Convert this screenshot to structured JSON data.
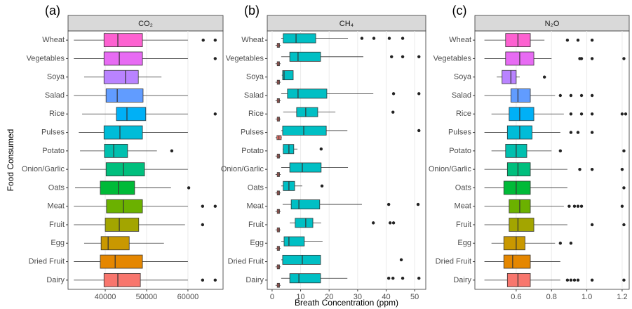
{
  "chart_data": [
    {
      "type": "boxplot",
      "label": "(a)",
      "title": "CO₂",
      "y_label": "Food Consumed",
      "categories": [
        "Wheat",
        "Vegetables",
        "Soya",
        "Salad",
        "Rice",
        "Pulses",
        "Potato",
        "Onion/Garlic",
        "Oats",
        "Meat",
        "Fruit",
        "Egg",
        "Dried Fruit",
        "Dairy"
      ],
      "xlim": [
        31000,
        68500
      ],
      "xticks": [
        40000,
        50000,
        60000
      ],
      "grid": true,
      "series": [
        {
          "colors": [
            "#FD61D1",
            "#E76BF3",
            "#B983FF",
            "#619CFF",
            "#00B0F6",
            "#00BCD8",
            "#00C0AF",
            "#00BF7D",
            "#00BA38",
            "#6BB100",
            "#A3A500",
            "#C99800",
            "#E58700",
            "#F8766D"
          ],
          "whislo": [
            32400,
            32400,
            34900,
            32400,
            34400,
            33600,
            33900,
            33900,
            32700,
            32400,
            32400,
            34900,
            32400,
            32400
          ],
          "q1": [
            39700,
            39700,
            39700,
            40200,
            42700,
            39700,
            39800,
            40200,
            38800,
            40300,
            40000,
            39000,
            38800,
            39700
          ],
          "med": [
            43050,
            43400,
            44900,
            42900,
            45250,
            43550,
            42050,
            44400,
            43200,
            44400,
            43400,
            40700,
            42400,
            43050
          ],
          "q3": [
            49000,
            49000,
            48000,
            49150,
            49800,
            49000,
            45400,
            49500,
            47100,
            49000,
            48100,
            45800,
            49000,
            48500
          ],
          "whishi": [
            60000,
            60000,
            53600,
            60000,
            60000,
            60000,
            52500,
            60000,
            55900,
            60000,
            59300,
            54200,
            60000,
            60000
          ],
          "fliers": [
            [
              63700,
              66600
            ],
            [
              66600
            ],
            [],
            [],
            [
              66600
            ],
            [],
            [
              56100
            ],
            [],
            [
              60200
            ],
            [
              63550,
              66600
            ],
            [
              63550
            ],
            [],
            [],
            [
              63550,
              66600
            ]
          ]
        }
      ]
    },
    {
      "type": "boxplot",
      "label": "(b)",
      "title": "CH₄",
      "x_label": "Breath Concentration (ppm)",
      "categories": [
        "Wheat",
        "Vegetables",
        "Soya",
        "Salad",
        "Rice",
        "Pulses",
        "Potato",
        "Onion/Garlic",
        "Oats",
        "Meat",
        "Fruit",
        "Egg",
        "Dried Fruit",
        "Dairy"
      ],
      "xlim": [
        -1.7,
        53.9
      ],
      "xticks": [
        0,
        10,
        20,
        30,
        40,
        50
      ],
      "grid": true,
      "series": [
        {
          "color": "#00BFC4",
          "whislo": [
            3.2,
            3.2,
            3.4,
            3.2,
            3.9,
            3.2,
            3.7,
            3.2,
            3.2,
            3.7,
            6.2,
            3.2,
            3.2,
            3.2
          ],
          "q1": [
            3.9,
            6.2,
            3.7,
            5.4,
            8.6,
            3.7,
            3.9,
            6.2,
            3.9,
            6.7,
            8.1,
            4.2,
            3.7,
            6.2
          ],
          "med": [
            8.4,
            9.1,
            4.2,
            9.1,
            11.8,
            11.1,
            5.9,
            10.6,
            5.9,
            9.4,
            11.8,
            5.9,
            10.6,
            9.4
          ],
          "q3": [
            15.3,
            17,
            7.4,
            19.2,
            16,
            19,
            7.6,
            17.2,
            7.9,
            16.7,
            14.3,
            11.3,
            17,
            17
          ],
          "whishi": [
            26.6,
            32,
            7.4,
            35.5,
            22.2,
            26.4,
            8.9,
            26.6,
            10.6,
            31.5,
            17.2,
            17.7,
            17,
            26.4
          ],
          "fliers": [
            [
              31.5,
              35.7,
              41.1,
              45.8
            ],
            [
              41.9,
              45.8,
              51.5
            ],
            [],
            [
              42.6,
              51.5
            ],
            [
              42.4
            ],
            [
              51.5
            ],
            [
              17.2
            ],
            [],
            [
              17.5
            ],
            [
              40.9,
              51.2
            ],
            [
              35.5,
              41.4,
              42.6
            ],
            [],
            [
              45.3
            ],
            [
              40.9,
              42.4,
              45.8,
              51.5
            ]
          ]
        },
        {
          "color": "#F8766D",
          "whislo": [
            1.2,
            1.2,
            1.2,
            1.2,
            1.2,
            1.2,
            1.2,
            1.2,
            1.2,
            1.2,
            1.2,
            1.2,
            1.2,
            1.2
          ],
          "q1": [
            1.8,
            1.8,
            1.8,
            1.8,
            1.8,
            1.7,
            1.8,
            1.8,
            1.8,
            1.8,
            1.8,
            1.8,
            1.8,
            1.8
          ],
          "med": [
            2.2,
            2.2,
            2.2,
            2.2,
            2.2,
            2.4,
            2.2,
            2.2,
            2.2,
            2.2,
            2.2,
            2.2,
            2.2,
            2.2
          ],
          "q3": [
            2.6,
            2.6,
            2.6,
            2.6,
            2.6,
            3.2,
            2.6,
            2.6,
            2.6,
            2.6,
            2.6,
            2.6,
            2.6,
            2.6
          ],
          "whishi": [
            3,
            3,
            3,
            3,
            3,
            3.4,
            3,
            3,
            3,
            3,
            3,
            3,
            3,
            3
          ]
        }
      ]
    },
    {
      "type": "boxplot",
      "label": "(c)",
      "title": "N₂O",
      "categories": [
        "Wheat",
        "Vegetables",
        "Soya",
        "Salad",
        "Rice",
        "Pulses",
        "Potato",
        "Onion/Garlic",
        "Oats",
        "Meat",
        "Fruit",
        "Egg",
        "Dried Fruit",
        "Dairy"
      ],
      "xlim": [
        0.366,
        1.24
      ],
      "xticks": [
        0.6,
        0.8,
        {
          "value": 1,
          "label": "1.0"
        },
        1.2
      ],
      "grid": true,
      "series": [
        {
          "colors": [
            "#FD61D1",
            "#E76BF3",
            "#B983FF",
            "#619CFF",
            "#00B0F6",
            "#00BCD8",
            "#00C0AF",
            "#00BF7D",
            "#00BA38",
            "#6BB100",
            "#A3A500",
            "#C99800",
            "#E58700",
            "#F8766D"
          ],
          "whislo": [
            0.42,
            0.42,
            0.49,
            0.42,
            0.46,
            0.42,
            0.46,
            0.42,
            0.42,
            0.42,
            0.42,
            0.46,
            0.42,
            0.42
          ],
          "q1": [
            0.54,
            0.54,
            0.52,
            0.57,
            0.56,
            0.55,
            0.54,
            0.55,
            0.53,
            0.56,
            0.56,
            0.53,
            0.53,
            0.55
          ],
          "med": [
            0.61,
            0.62,
            0.57,
            0.61,
            0.62,
            0.62,
            0.6,
            0.61,
            0.6,
            0.62,
            0.61,
            0.6,
            0.58,
            0.61
          ],
          "q3": [
            0.68,
            0.7,
            0.6,
            0.68,
            0.7,
            0.69,
            0.66,
            0.68,
            0.68,
            0.68,
            0.7,
            0.65,
            0.68,
            0.68
          ],
          "whishi": [
            0.76,
            0.8,
            0.62,
            0.82,
            0.87,
            0.85,
            0.8,
            0.89,
            0.89,
            0.87,
            0.89,
            0.82,
            0.85,
            0.85
          ],
          "fliers": [
            [
              0.89,
              0.95,
              1.03
            ],
            [
              0.96,
              0.97,
              1.03,
              1.21
            ],
            [
              0.76
            ],
            [
              0.85,
              0.91,
              0.97,
              1.03
            ],
            [
              0.91,
              0.97,
              1.03,
              1.2,
              1.22
            ],
            [
              0.91,
              0.95,
              1.03
            ],
            [
              0.85,
              1.21
            ],
            [
              0.96,
              1.03,
              1.2
            ],
            [
              1.21
            ],
            [
              0.9,
              0.93,
              0.95,
              0.97,
              1.2
            ],
            [
              1.03,
              1.21
            ],
            [
              0.85,
              0.91
            ],
            [],
            [
              0.89,
              0.91,
              0.93,
              0.95,
              1.03,
              1.21
            ]
          ]
        }
      ]
    }
  ]
}
